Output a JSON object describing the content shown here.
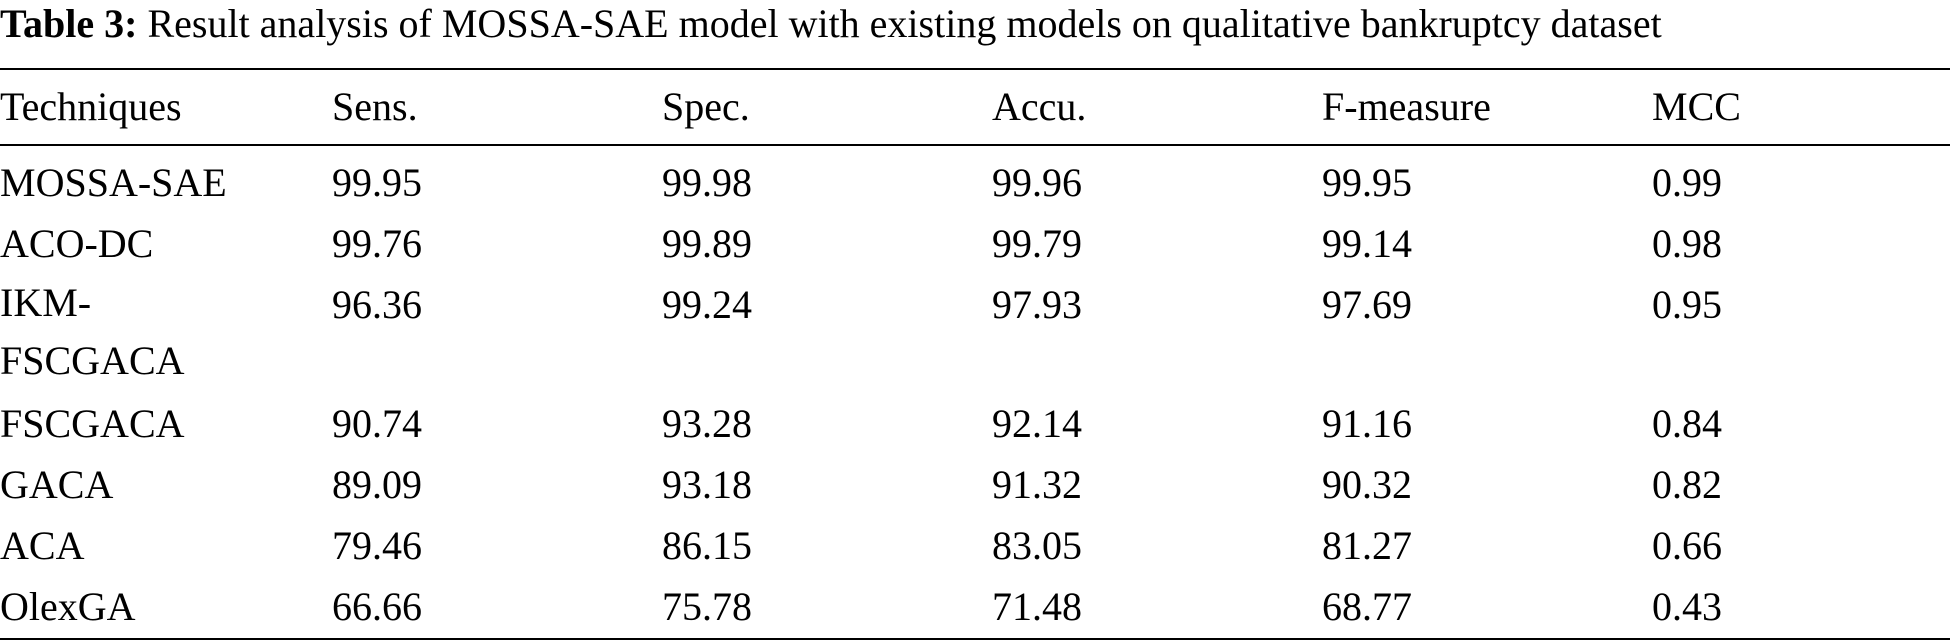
{
  "caption": {
    "label": "Table 3:",
    "text": " Result analysis of MOSSA-SAE model with existing models on qualitative bankruptcy dataset"
  },
  "table": {
    "headers": [
      "Techniques",
      "Sens.",
      "Spec.",
      "Accu.",
      "F-measure",
      "MCC"
    ],
    "rows": [
      [
        "MOSSA-SAE",
        "99.95",
        "99.98",
        "99.96",
        "99.95",
        "0.99"
      ],
      [
        "ACO-DC",
        "99.76",
        "99.89",
        "99.79",
        "99.14",
        "0.98"
      ],
      [
        "IKM-FSCGACA",
        "96.36",
        "99.24",
        "97.93",
        "97.69",
        "0.95"
      ],
      [
        "FSCGACA",
        "90.74",
        "93.28",
        "92.14",
        "91.16",
        "0.84"
      ],
      [
        "GACA",
        "89.09",
        "93.18",
        "91.32",
        "90.32",
        "0.82"
      ],
      [
        "ACA",
        "79.46",
        "86.15",
        "83.05",
        "81.27",
        "0.66"
      ],
      [
        "OlexGA",
        "66.66",
        "75.78",
        "71.48",
        "68.77",
        "0.43"
      ]
    ],
    "wrapped_technique": {
      "line1": "IKM-",
      "line2": "FSCGACA"
    }
  }
}
